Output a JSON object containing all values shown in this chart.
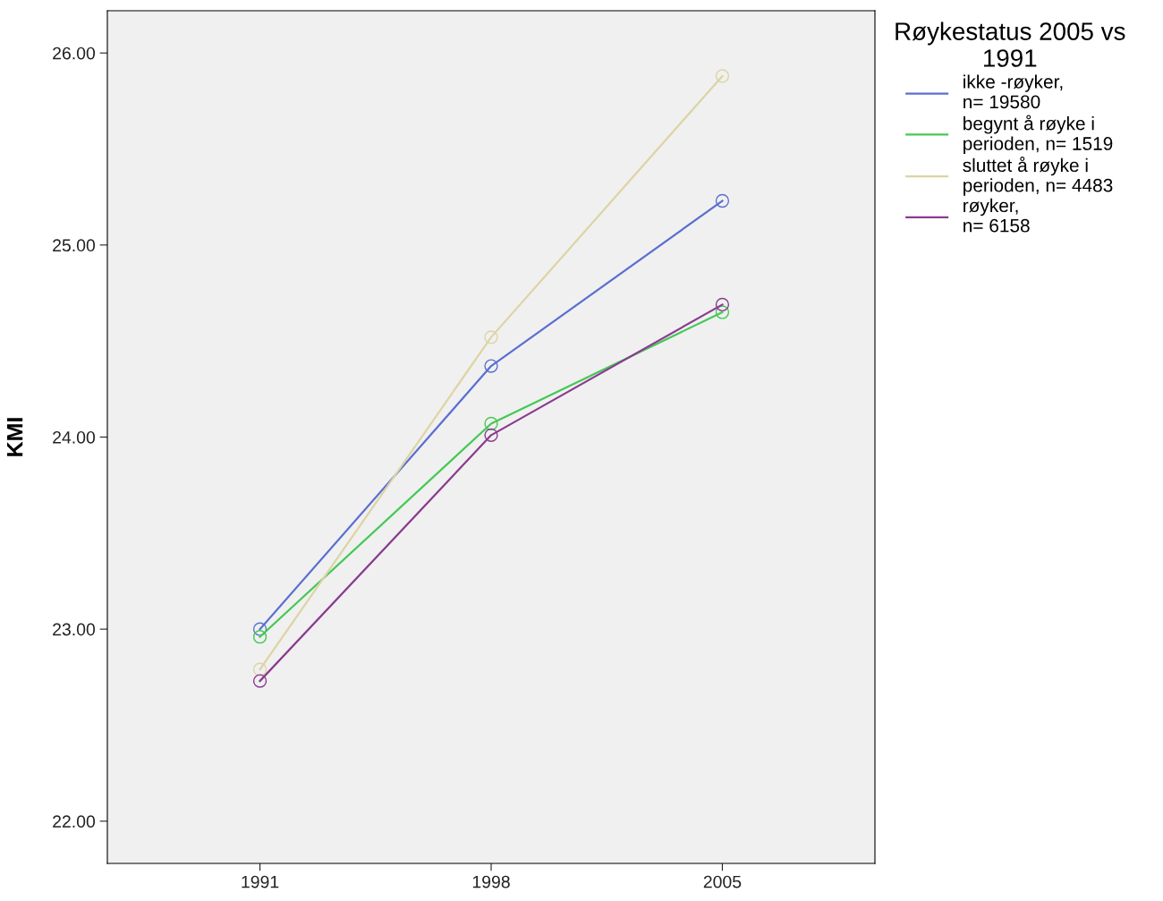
{
  "chart_data": {
    "type": "line",
    "ylabel": "KMI",
    "legend_title": "Røykestatus 2005 vs\n1991",
    "categories": [
      "1991",
      "1998",
      "2005"
    ],
    "ylim": [
      21.78,
      26.22
    ],
    "yticks": [
      {
        "value": 22,
        "label": "22.00"
      },
      {
        "value": 23,
        "label": "23.00"
      },
      {
        "value": 24,
        "label": "24.00"
      },
      {
        "value": 25,
        "label": "25.00"
      },
      {
        "value": 26,
        "label": "26.00"
      }
    ],
    "marker": "circle",
    "line_style": "solid",
    "grid": false,
    "legend": "right",
    "series": [
      {
        "name": "ikke -røyker,\nn= 19580",
        "color": "#5a6fd0",
        "values": [
          23.0,
          24.37,
          25.23
        ]
      },
      {
        "name": "begynt å røyke i\nperioden, n= 1519",
        "color": "#45c855",
        "values": [
          22.96,
          24.07,
          24.65
        ]
      },
      {
        "name": "sluttet å røyke i\nperioden, n= 4483",
        "color": "#dcd4a4",
        "values": [
          22.79,
          24.52,
          25.88
        ]
      },
      {
        "name": "røyker,\nn= 6158",
        "color": "#8a3b8f",
        "values": [
          22.73,
          24.01,
          24.69
        ]
      }
    ]
  }
}
